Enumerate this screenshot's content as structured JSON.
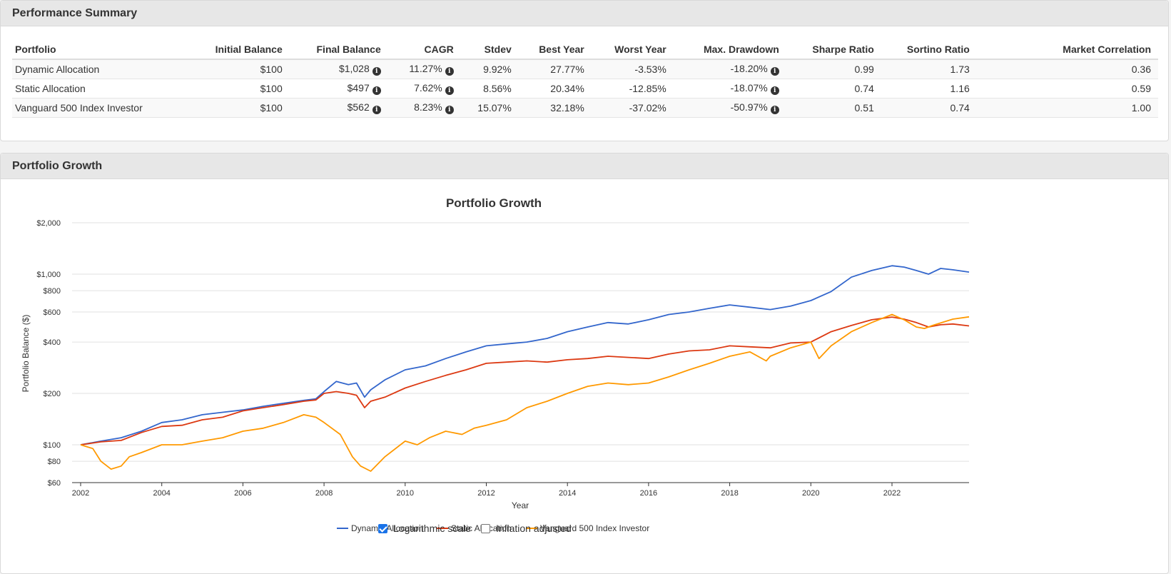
{
  "summary": {
    "title": "Performance Summary",
    "columns": [
      "Portfolio",
      "Initial Balance",
      "Final Balance",
      "CAGR",
      "Stdev",
      "Best Year",
      "Worst Year",
      "Max. Drawdown",
      "Sharpe Ratio",
      "Sortino Ratio",
      "Market Correlation"
    ],
    "rows": [
      {
        "portfolio": "Dynamic Allocation",
        "initial": "$100",
        "final": "$1,028",
        "cagr": "11.27%",
        "stdev": "9.92%",
        "best": "27.77%",
        "worst": "-3.53%",
        "drawdown": "-18.20%",
        "sharpe": "0.99",
        "sortino": "1.73",
        "corr": "0.36"
      },
      {
        "portfolio": "Static Allocation",
        "initial": "$100",
        "final": "$497",
        "cagr": "7.62%",
        "stdev": "8.56%",
        "best": "20.34%",
        "worst": "-12.85%",
        "drawdown": "-18.07%",
        "sharpe": "0.74",
        "sortino": "1.16",
        "corr": "0.59"
      },
      {
        "portfolio": "Vanguard 500 Index Investor",
        "initial": "$100",
        "final": "$562",
        "cagr": "8.23%",
        "stdev": "15.07%",
        "best": "32.18%",
        "worst": "-37.02%",
        "drawdown": "-50.97%",
        "sharpe": "0.51",
        "sortino": "0.74",
        "corr": "1.00"
      }
    ],
    "info_icon": "info-circle-icon"
  },
  "growth": {
    "title": "Portfolio Growth",
    "options": {
      "log_label": "Logarithmic scale",
      "log_checked": true,
      "inflation_label": "Inflation adjusted",
      "inflation_checked": false
    }
  },
  "chart_data": {
    "type": "line",
    "title": "Portfolio Growth",
    "xlabel": "Year",
    "ylabel": "Portfolio Balance ($)",
    "log_scale": true,
    "ylim": [
      60,
      2000
    ],
    "xlim": [
      2002,
      2023.9
    ],
    "yticks": [
      60,
      80,
      100,
      200,
      400,
      600,
      800,
      1000,
      2000
    ],
    "ytick_labels": [
      "$60",
      "$80",
      "$100",
      "$200",
      "$400",
      "$600",
      "$800",
      "$1,000",
      "$2,000"
    ],
    "xticks": [
      2002,
      2004,
      2006,
      2008,
      2010,
      2012,
      2014,
      2016,
      2018,
      2020,
      2022
    ],
    "xtick_labels": [
      "2002",
      "2004",
      "2006",
      "2008",
      "2010",
      "2012",
      "2014",
      "2016",
      "2018",
      "2020",
      "2022"
    ],
    "grid": true,
    "legend_position": "bottom",
    "series": [
      {
        "name": "Dynamic Allocation",
        "color": "#3366cc",
        "x": [
          2002,
          2002.5,
          2003,
          2003.5,
          2004,
          2004.5,
          2005,
          2005.5,
          2006,
          2006.5,
          2007,
          2007.5,
          2007.8,
          2008,
          2008.3,
          2008.6,
          2008.8,
          2009,
          2009.15,
          2009.5,
          2010,
          2010.5,
          2011,
          2011.5,
          2012,
          2012.5,
          2013,
          2013.5,
          2014,
          2014.5,
          2015,
          2015.5,
          2016,
          2016.5,
          2017,
          2017.5,
          2018,
          2018.5,
          2019,
          2019.5,
          2020,
          2020.5,
          2021,
          2021.5,
          2022,
          2022.3,
          2022.6,
          2022.9,
          2023.2,
          2023.5,
          2023.9
        ],
        "y": [
          100,
          105,
          110,
          120,
          135,
          140,
          150,
          155,
          160,
          168,
          175,
          182,
          186,
          205,
          235,
          225,
          230,
          190,
          210,
          240,
          275,
          290,
          320,
          350,
          380,
          390,
          400,
          420,
          460,
          490,
          520,
          510,
          540,
          580,
          600,
          630,
          660,
          640,
          620,
          650,
          700,
          790,
          960,
          1050,
          1120,
          1100,
          1050,
          1000,
          1080,
          1060,
          1028
        ]
      },
      {
        "name": "Static Allocation",
        "color": "#dc3912",
        "x": [
          2002,
          2002.5,
          2003,
          2003.5,
          2004,
          2004.5,
          2005,
          2005.5,
          2006,
          2006.5,
          2007,
          2007.5,
          2007.8,
          2008,
          2008.3,
          2008.6,
          2008.8,
          2009,
          2009.15,
          2009.5,
          2010,
          2010.5,
          2011,
          2011.5,
          2012,
          2012.5,
          2013,
          2013.5,
          2014,
          2014.5,
          2015,
          2015.5,
          2016,
          2016.5,
          2017,
          2017.5,
          2018,
          2018.5,
          2019,
          2019.5,
          2020,
          2020.5,
          2021,
          2021.5,
          2022,
          2022.3,
          2022.6,
          2022.9,
          2023.2,
          2023.5,
          2023.9
        ],
        "y": [
          100,
          104,
          106,
          118,
          128,
          130,
          140,
          145,
          158,
          165,
          172,
          180,
          183,
          200,
          205,
          200,
          195,
          165,
          180,
          190,
          215,
          235,
          255,
          275,
          300,
          305,
          310,
          305,
          315,
          320,
          330,
          325,
          320,
          340,
          355,
          360,
          380,
          375,
          370,
          395,
          400,
          460,
          500,
          540,
          560,
          545,
          520,
          490,
          505,
          510,
          497
        ]
      },
      {
        "name": "Vanguard 500 Index Investor",
        "color": "#ff9900",
        "x": [
          2002,
          2002.3,
          2002.5,
          2002.75,
          2003,
          2003.2,
          2003.5,
          2004,
          2004.5,
          2005,
          2005.5,
          2006,
          2006.5,
          2007,
          2007.5,
          2007.8,
          2008,
          2008.4,
          2008.7,
          2008.9,
          2009.15,
          2009.5,
          2010,
          2010.3,
          2010.6,
          2011,
          2011.4,
          2011.7,
          2012,
          2012.5,
          2013,
          2013.5,
          2014,
          2014.5,
          2015,
          2015.5,
          2016,
          2016.5,
          2017,
          2017.5,
          2018,
          2018.5,
          2018.9,
          2019,
          2019.5,
          2020,
          2020.2,
          2020.5,
          2021,
          2021.5,
          2022,
          2022.3,
          2022.6,
          2022.8,
          2023,
          2023.5,
          2023.9
        ],
        "y": [
          100,
          95,
          80,
          72,
          75,
          85,
          90,
          100,
          100,
          105,
          110,
          120,
          125,
          135,
          150,
          145,
          135,
          115,
          85,
          75,
          70,
          85,
          105,
          100,
          110,
          120,
          115,
          125,
          130,
          140,
          165,
          180,
          200,
          220,
          230,
          225,
          230,
          250,
          275,
          300,
          330,
          350,
          310,
          330,
          370,
          400,
          320,
          380,
          460,
          520,
          580,
          540,
          490,
          480,
          500,
          545,
          562
        ]
      }
    ]
  }
}
